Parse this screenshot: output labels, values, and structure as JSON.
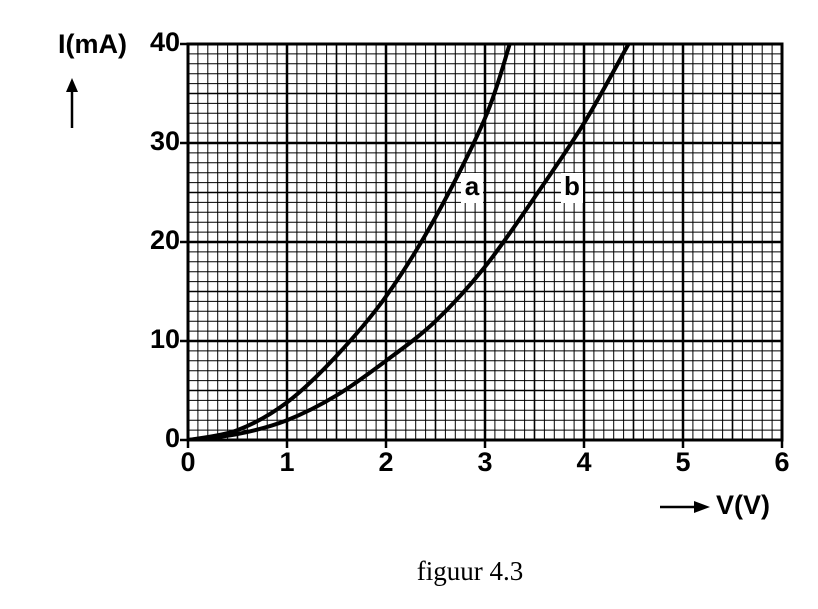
{
  "chart_data": {
    "type": "line",
    "ylabel": "I(mA)",
    "xlabel": "V(V)",
    "caption": "figuur 4.3",
    "series": [
      {
        "name": "a",
        "color": "#000000",
        "x": [
          0,
          0.5,
          1,
          1.5,
          2,
          2.5,
          3,
          3.25
        ],
        "values": [
          0,
          1,
          3.8,
          8.5,
          14.5,
          22.5,
          32.5,
          40
        ]
      },
      {
        "name": "b",
        "color": "#000000",
        "x": [
          0,
          0.5,
          1,
          1.5,
          2,
          2.5,
          3,
          3.5,
          4,
          4.45
        ],
        "values": [
          0,
          0.6,
          2,
          4.5,
          8,
          12,
          17.5,
          24.5,
          32,
          40
        ]
      }
    ],
    "xlim": [
      0,
      6
    ],
    "xticks": [
      0,
      1,
      2,
      3,
      4,
      5,
      6
    ],
    "ylim": [
      0,
      40
    ],
    "yticks": [
      0,
      10,
      20,
      30,
      40
    ],
    "grid": true
  }
}
